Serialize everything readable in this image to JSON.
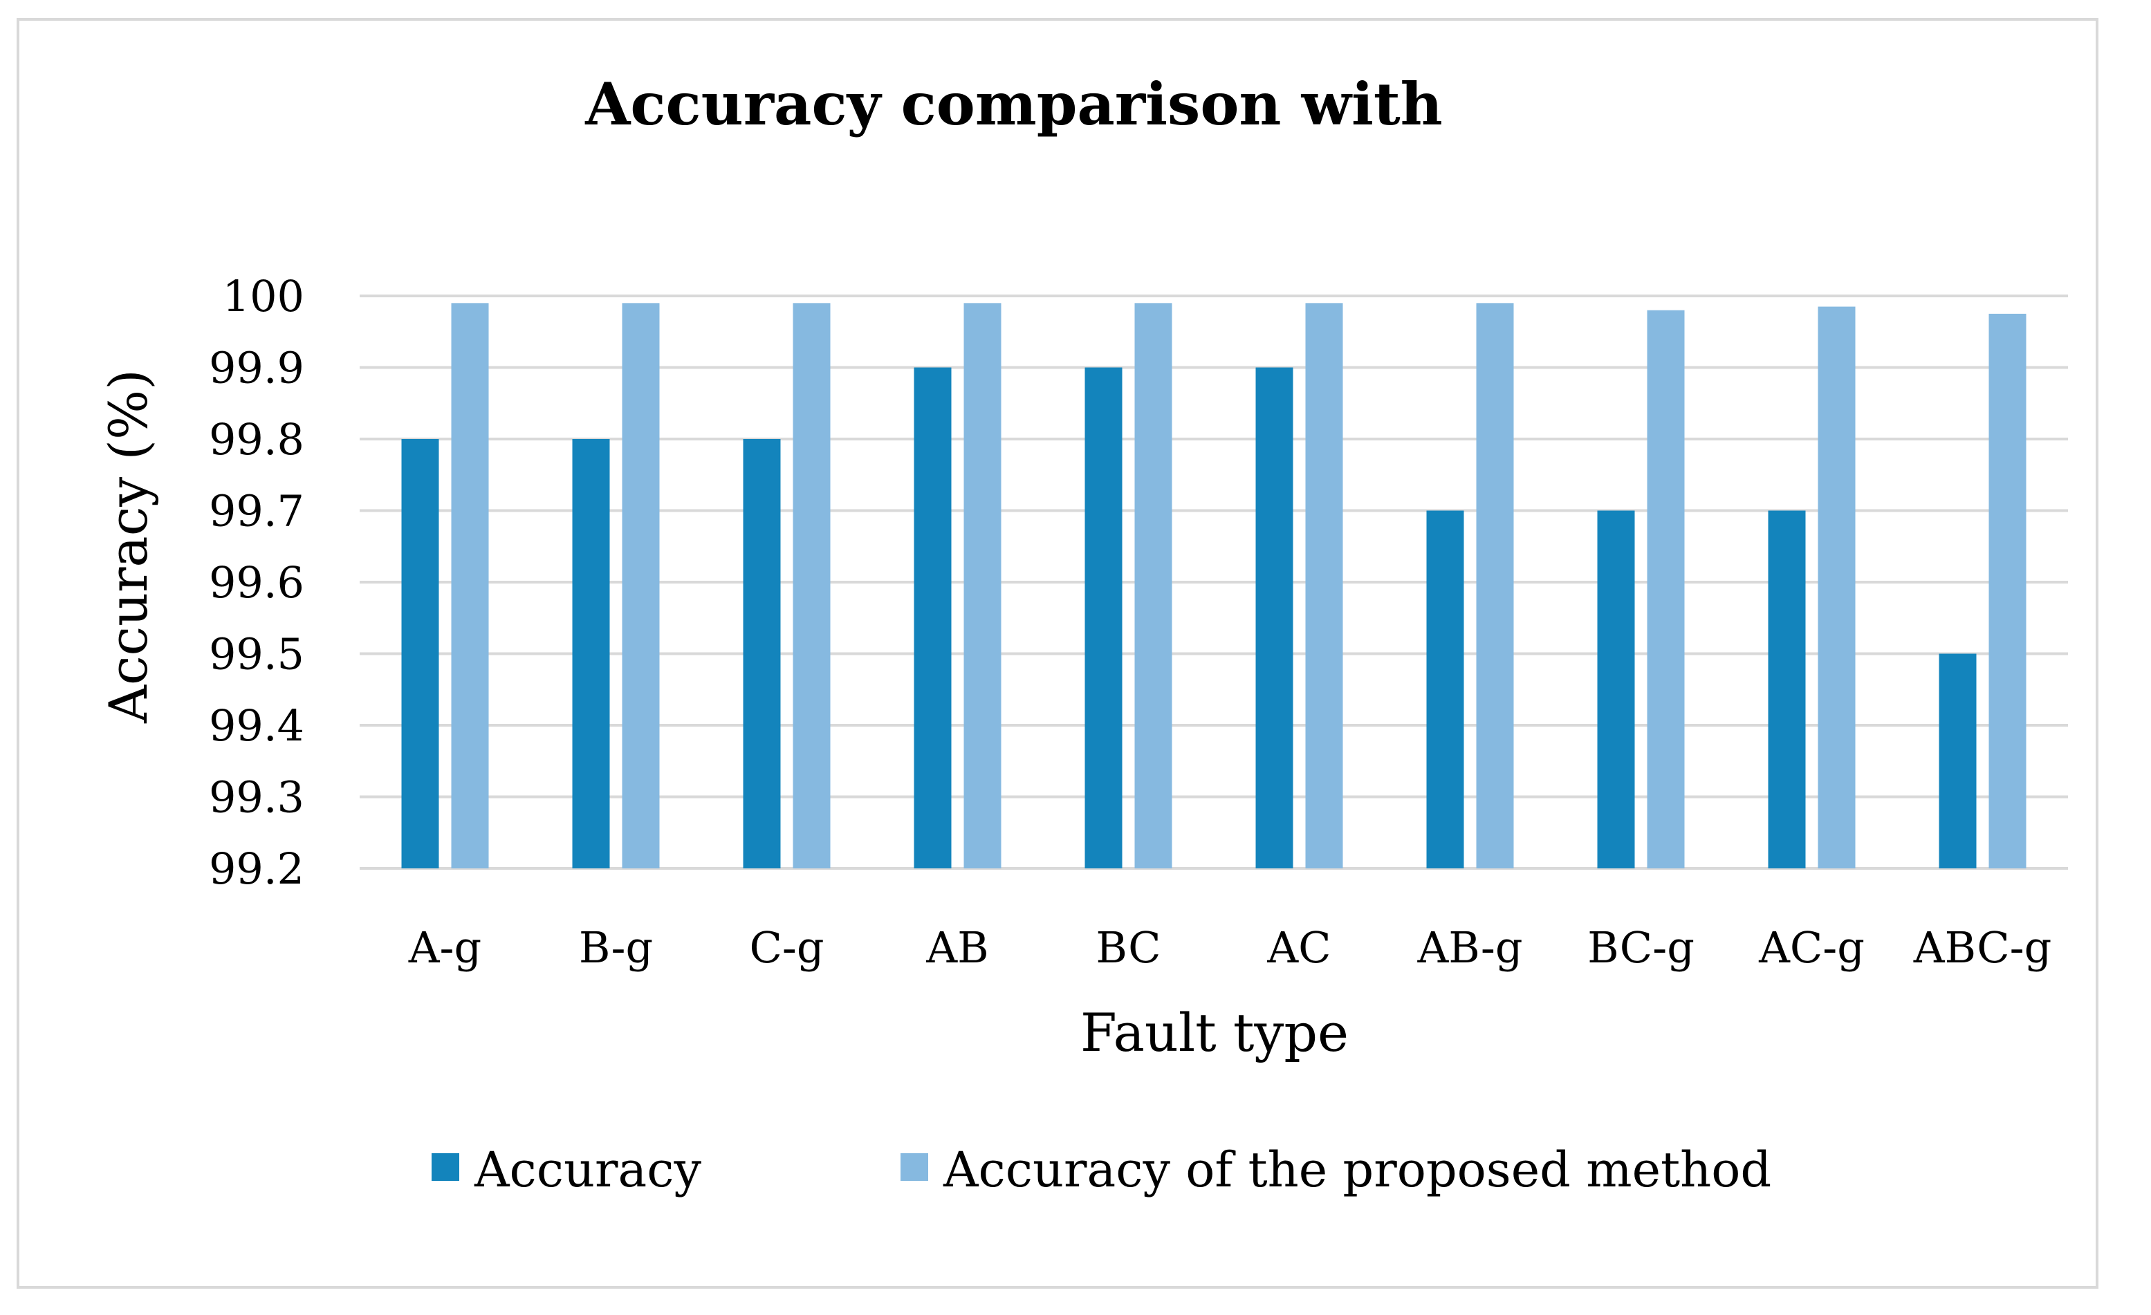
{
  "chart_data": {
    "type": "bar",
    "title": "Accuracy comparison with",
    "xlabel": "Fault type",
    "ylabel": "Accuracy (%)",
    "categories": [
      "A-g",
      "B-g",
      "C-g",
      "AB",
      "BC",
      "AC",
      "AB-g",
      "BC-g",
      "AC-g",
      "ABC-g"
    ],
    "series": [
      {
        "name": "Accuracy",
        "color": "#1384bc",
        "values": [
          99.8,
          99.8,
          99.8,
          99.9,
          99.9,
          99.9,
          99.7,
          99.7,
          99.7,
          99.5
        ]
      },
      {
        "name": "Accuracy of the proposed method",
        "color": "#86b9e0",
        "values": [
          99.99,
          99.99,
          99.99,
          99.99,
          99.99,
          99.99,
          99.99,
          99.98,
          99.985,
          99.975
        ]
      }
    ],
    "ylim": [
      99.2,
      100
    ],
    "yticks": [
      "99.2",
      "99.3",
      "99.4",
      "99.5",
      "99.6",
      "99.7",
      "99.8",
      "99.9",
      "100"
    ],
    "grid": true,
    "legend_position": "bottom",
    "gridline_color": "#d9d9d9"
  }
}
